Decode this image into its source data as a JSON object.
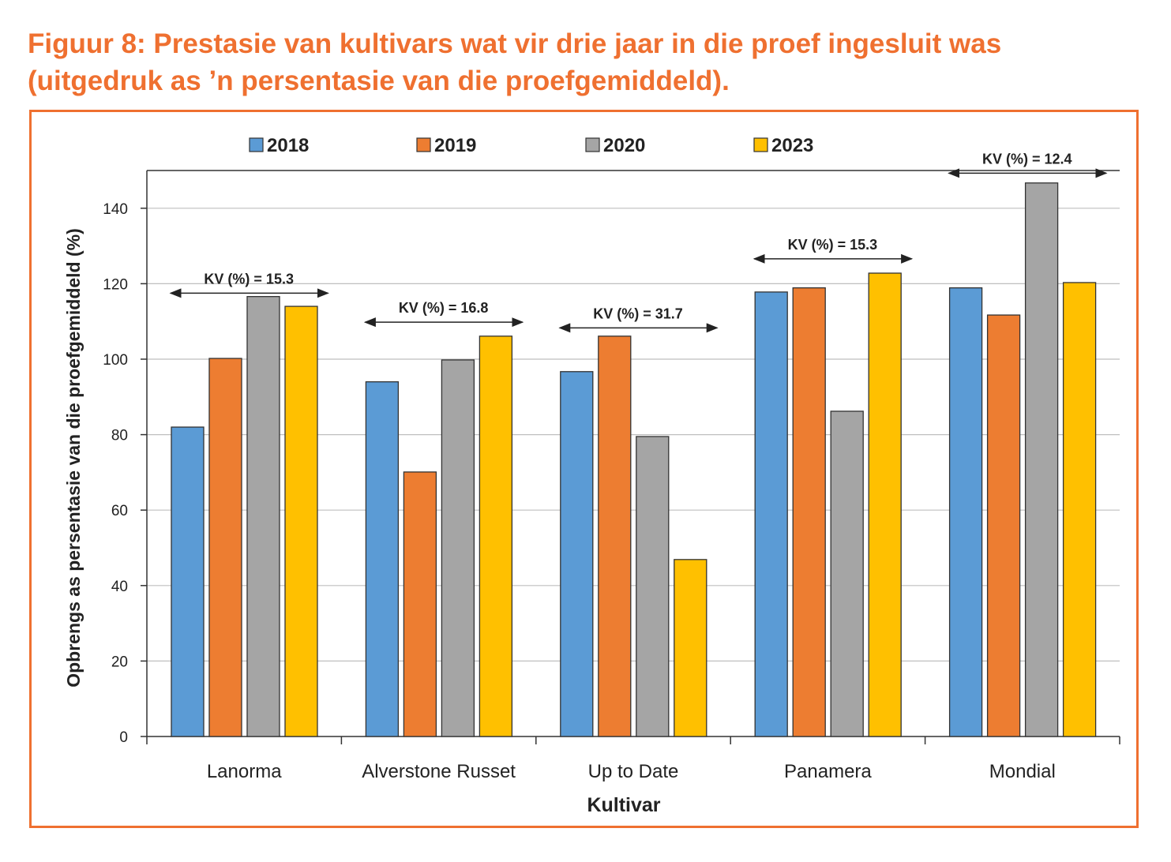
{
  "title_line1": "Figuur 8: Prestasie van kultivars wat vir drie jaar in die proef ingesluit was",
  "title_line2": "(uitgedruk as ’n persentasie van die proefgemiddeld).",
  "chart_data": {
    "type": "bar",
    "xlabel": "Kultivar",
    "ylabel": "Opbrengs as persentasie van die proefgemiddeld (%)",
    "ylim": [
      0,
      150
    ],
    "yticks": [
      0,
      20,
      40,
      60,
      80,
      100,
      120,
      140
    ],
    "grid": true,
    "legend_position": "top",
    "categories": [
      "Lanorma",
      "Alverstone Russet",
      "Up to Date",
      "Panamera",
      "Mondial"
    ],
    "series": [
      {
        "name": "2018",
        "color": "#5B9BD5",
        "values": [
          82.0,
          94.0,
          96.7,
          117.8,
          118.9
        ]
      },
      {
        "name": "2019",
        "color": "#ED7D31",
        "values": [
          100.2,
          70.1,
          106.1,
          118.9,
          111.7
        ]
      },
      {
        "name": "2020",
        "color": "#A5A5A5",
        "values": [
          116.6,
          99.8,
          79.5,
          86.2,
          146.7
        ]
      },
      {
        "name": "2023",
        "color": "#FFC000",
        "values": [
          114.0,
          106.1,
          46.9,
          122.8,
          120.3
        ]
      }
    ],
    "annotations": [
      {
        "label": "KV (%) = 15.3",
        "level": 117.5
      },
      {
        "label": "KV (%) = 16.8",
        "level": 109.8
      },
      {
        "label": "KV (%) = 31.7",
        "level": 108.3
      },
      {
        "label": "KV (%) = 15.3",
        "level": 126.6
      },
      {
        "label": "KV (%) = 12.4",
        "level": 149.3
      }
    ]
  }
}
